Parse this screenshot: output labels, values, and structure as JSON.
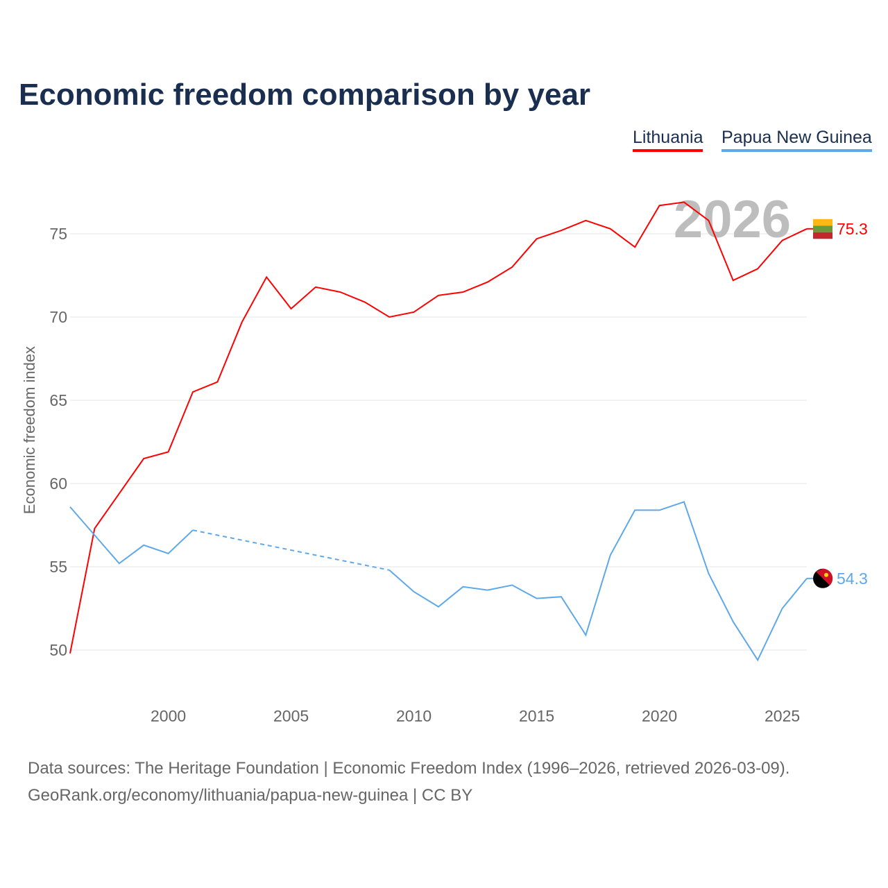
{
  "chart_data": {
    "type": "line",
    "title": "Economic freedom comparison by year",
    "ylabel": "Economic freedom index",
    "xlabel": "",
    "ylim": [
      47.4,
      77.6
    ],
    "xlim": [
      1996,
      2026
    ],
    "yticks": [
      50,
      55,
      60,
      65,
      70,
      75
    ],
    "xticks": [
      2000,
      2005,
      2010,
      2015,
      2020,
      2025
    ],
    "grid": true,
    "legend_placement": "top-right",
    "watermark_year": "2026",
    "x": [
      1996,
      1997,
      1998,
      1999,
      2000,
      2001,
      2002,
      2003,
      2004,
      2005,
      2006,
      2007,
      2008,
      2009,
      2010,
      2011,
      2012,
      2013,
      2014,
      2015,
      2016,
      2017,
      2018,
      2019,
      2020,
      2021,
      2022,
      2023,
      2024,
      2025,
      2026
    ],
    "series": [
      {
        "name": "Lithuania",
        "color": "#ff0000",
        "end_label": "75.3",
        "values": [
          49.8,
          57.3,
          59.4,
          61.5,
          61.9,
          65.5,
          66.1,
          69.7,
          72.4,
          70.5,
          71.8,
          71.5,
          70.9,
          70.0,
          70.3,
          71.3,
          71.5,
          72.1,
          73.0,
          74.7,
          75.2,
          75.8,
          75.3,
          74.2,
          76.7,
          76.9,
          75.8,
          72.2,
          72.9,
          74.6,
          75.3
        ]
      },
      {
        "name": "Papua New Guinea",
        "color": "#5ea8ea",
        "end_label": "54.3",
        "values": [
          58.6,
          56.9,
          55.2,
          56.3,
          55.8,
          57.2,
          null,
          null,
          null,
          null,
          null,
          null,
          null,
          54.8,
          53.5,
          52.6,
          53.8,
          53.6,
          53.9,
          53.1,
          53.2,
          50.9,
          55.7,
          58.4,
          58.4,
          58.9,
          54.6,
          51.7,
          49.4,
          52.5,
          54.3
        ]
      }
    ]
  },
  "footer": {
    "line1": "Data sources: The Heritage Foundation | Economic Freedom Index (1996–2026, retrieved 2026-03-09).",
    "line2": "GeoRank.org/economy/lithuania/papua-new-guinea | CC BY"
  }
}
